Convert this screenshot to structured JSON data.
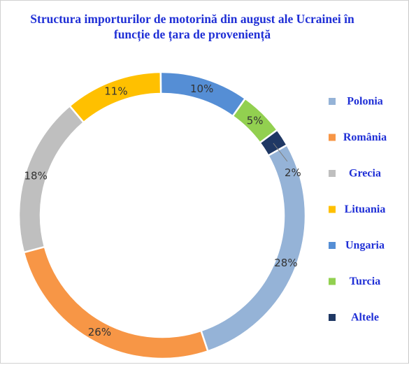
{
  "chart_data": {
    "type": "pie",
    "title": "Structura importurilor de motorină din august ale Ucrainei în funcție de țara de proveniență",
    "categories": [
      "Polonia",
      "România",
      "Grecia",
      "Lituania",
      "Ungaria",
      "Turcia",
      "Altele"
    ],
    "values": [
      28,
      26,
      18,
      11,
      10,
      5,
      2
    ],
    "labels": [
      "28%",
      "26%",
      "18%",
      "11%",
      "10%",
      "5%",
      "2%"
    ],
    "colors": [
      "#95B3D7",
      "#F79646",
      "#BFBFBF",
      "#FFC000",
      "#558ED5",
      "#92D050",
      "#1F3864"
    ],
    "legend_position": "right",
    "style": "doughnut"
  }
}
